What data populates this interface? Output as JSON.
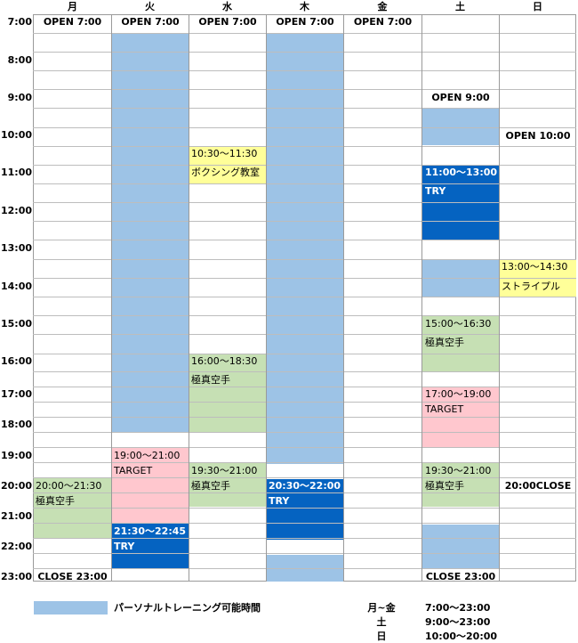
{
  "days": [
    "月",
    "火",
    "水",
    "木",
    "金",
    "土",
    "日"
  ],
  "times": [
    "7:00",
    "8:00",
    "9:00",
    "10:00",
    "11:00",
    "12:00",
    "13:00",
    "14:00",
    "15:00",
    "16:00",
    "17:00",
    "18:00",
    "19:00",
    "20:00",
    "21:00",
    "22:00",
    "23:00"
  ],
  "colors": {
    "personal": "#9dc3e6",
    "try": "#0563c1",
    "green": "#c6e0b4",
    "pink": "#ffc7ce",
    "yellow": "#ffff99"
  },
  "labels": {
    "open700": "OPEN 7:00",
    "open900": "OPEN 9:00",
    "open1000": "OPEN 10:00",
    "close2300": "CLOSE 23:00",
    "close2000": "20:00CLOSE"
  },
  "events": {
    "wed_boxing_time": "10:30～11:30",
    "wed_boxing_name": "ボクシング教室",
    "sat_try_time": "11:00～13:00",
    "sat_try_name": "TRY",
    "sun_stripe_time": "13:00～14:30",
    "sun_stripe_name": "ストライプル",
    "sat_karate1_time": "15:00～16:30",
    "sat_karate1_name": "極真空手",
    "wed_karate1_time": "16:00～18:30",
    "wed_karate1_name": "極真空手",
    "sat_target_time": "17:00～19:00",
    "sat_target_name": "TARGET",
    "tue_target_time": "19:00～21:00",
    "tue_target_name": "TARGET",
    "wed_karate2_time": "19:30～21:00",
    "wed_karate2_name": "極真空手",
    "sat_karate2_time": "19:30～21:00",
    "sat_karate2_name": "極真空手",
    "mon_karate_time": "20:00～21:30",
    "mon_karate_name": "極真空手",
    "thu_try_time": "20:30～22:00",
    "thu_try_name": "TRY",
    "tue_try_time": "21:30～22:45",
    "tue_try_name": "TRY"
  },
  "legend": {
    "label": "パーソナルトレーニング可能時間",
    "rows": [
      {
        "day": "月~金",
        "hours": "7:00～23:00"
      },
      {
        "day": "土",
        "hours": "9:00～23:00"
      },
      {
        "day": "日",
        "hours": "10:00～20:00"
      }
    ]
  }
}
